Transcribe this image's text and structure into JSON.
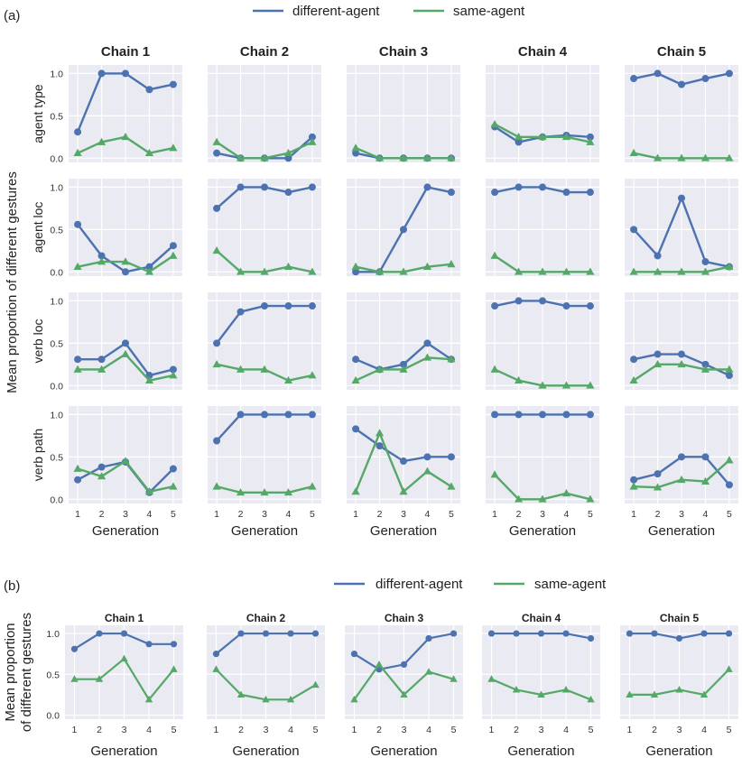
{
  "colors": {
    "different_agent": "#4c72b0",
    "same_agent": "#55a868",
    "panel_bg": "#eaeaf2",
    "grid": "#ffffff"
  },
  "chart_data": [
    {
      "panel": "(a)",
      "type": "line",
      "legend": {
        "position": "top-center",
        "entries": [
          "different-agent",
          "same-agent"
        ]
      },
      "ylabel": "Mean proportion of different gestures",
      "xlabel": "Generation",
      "x": [
        1,
        2,
        3,
        4,
        5
      ],
      "xticks": [
        "1",
        "2",
        "3",
        "4",
        "5"
      ],
      "ylim": [
        -0.05,
        1.1
      ],
      "yticks": [
        "0.0",
        "0.5",
        "1.0"
      ],
      "grid": true,
      "columns": [
        "Chain 1",
        "Chain 2",
        "Chain 3",
        "Chain 4",
        "Chain 5"
      ],
      "rows": [
        {
          "label": "agent type",
          "cells": [
            {
              "different": [
                0.31,
                1.0,
                1.0,
                0.81,
                0.87
              ],
              "same": [
                0.06,
                0.19,
                0.25,
                0.06,
                0.12
              ]
            },
            {
              "different": [
                0.06,
                0.0,
                0.0,
                0.0,
                0.25
              ],
              "same": [
                0.19,
                0.0,
                0.0,
                0.06,
                0.19
              ]
            },
            {
              "different": [
                0.06,
                0.0,
                0.0,
                0.0,
                0.0
              ],
              "same": [
                0.12,
                0.0,
                0.0,
                0.0,
                0.0
              ]
            },
            {
              "different": [
                0.37,
                0.19,
                0.25,
                0.27,
                0.25
              ],
              "same": [
                0.4,
                0.25,
                0.25,
                0.25,
                0.19
              ]
            },
            {
              "different": [
                0.94,
                1.0,
                0.87,
                0.94,
                1.0
              ],
              "same": [
                0.06,
                0.0,
                0.0,
                0.0,
                0.0
              ]
            }
          ]
        },
        {
          "label": "agent loc",
          "cells": [
            {
              "different": [
                0.56,
                0.19,
                0.0,
                0.06,
                0.31
              ],
              "same": [
                0.06,
                0.12,
                0.12,
                0.0,
                0.19
              ]
            },
            {
              "different": [
                0.75,
                1.0,
                1.0,
                0.94,
                1.0
              ],
              "same": [
                0.25,
                0.0,
                0.0,
                0.06,
                0.0
              ]
            },
            {
              "different": [
                0.0,
                0.0,
                0.5,
                1.0,
                0.94
              ],
              "same": [
                0.06,
                0.0,
                0.0,
                0.06,
                0.09
              ]
            },
            {
              "different": [
                0.94,
                1.0,
                1.0,
                0.94,
                0.94
              ],
              "same": [
                0.19,
                0.0,
                0.0,
                0.0,
                0.0
              ]
            },
            {
              "different": [
                0.5,
                0.19,
                0.87,
                0.12,
                0.06
              ],
              "same": [
                0.0,
                0.0,
                0.0,
                0.0,
                0.06
              ]
            }
          ]
        },
        {
          "label": "verb loc",
          "cells": [
            {
              "different": [
                0.31,
                0.31,
                0.5,
                0.12,
                0.19
              ],
              "same": [
                0.19,
                0.19,
                0.37,
                0.06,
                0.12
              ]
            },
            {
              "different": [
                0.5,
                0.87,
                0.94,
                0.94,
                0.94
              ],
              "same": [
                0.25,
                0.19,
                0.19,
                0.06,
                0.12
              ]
            },
            {
              "different": [
                0.31,
                0.19,
                0.25,
                0.5,
                0.31
              ],
              "same": [
                0.06,
                0.19,
                0.19,
                0.33,
                0.31
              ]
            },
            {
              "different": [
                0.94,
                1.0,
                1.0,
                0.94,
                0.94
              ],
              "same": [
                0.19,
                0.06,
                0.0,
                0.0,
                0.0
              ]
            },
            {
              "different": [
                0.31,
                0.37,
                0.37,
                0.25,
                0.12
              ],
              "same": [
                0.06,
                0.25,
                0.25,
                0.19,
                0.19
              ]
            }
          ]
        },
        {
          "label": "verb path",
          "cells": [
            {
              "different": [
                0.23,
                0.38,
                0.44,
                0.08,
                0.36
              ],
              "same": [
                0.36,
                0.27,
                0.45,
                0.09,
                0.15
              ]
            },
            {
              "different": [
                0.69,
                1.0,
                1.0,
                1.0,
                1.0
              ],
              "same": [
                0.15,
                0.08,
                0.08,
                0.08,
                0.15
              ]
            },
            {
              "different": [
                0.83,
                0.63,
                0.45,
                0.5,
                0.5
              ],
              "same": [
                0.09,
                0.78,
                0.09,
                0.33,
                0.15
              ]
            },
            {
              "different": [
                1.0,
                1.0,
                1.0,
                1.0,
                1.0
              ],
              "same": [
                0.29,
                0.0,
                0.0,
                0.07,
                0.0
              ]
            },
            {
              "different": [
                0.23,
                0.3,
                0.5,
                0.5,
                0.17
              ],
              "same": [
                0.15,
                0.14,
                0.23,
                0.21,
                0.46
              ]
            }
          ]
        }
      ]
    },
    {
      "panel": "(b)",
      "type": "line",
      "legend": {
        "position": "top-center",
        "entries": [
          "different-agent",
          "same-agent"
        ]
      },
      "ylabel_lines": [
        "Mean proportion",
        "of different gestures"
      ],
      "xlabel": "Generation",
      "x": [
        1,
        2,
        3,
        4,
        5
      ],
      "xticks": [
        "1",
        "2",
        "3",
        "4",
        "5"
      ],
      "ylim": [
        -0.05,
        1.1
      ],
      "yticks": [
        "0.0",
        "0.5",
        "1.0"
      ],
      "grid": true,
      "columns": [
        "Chain 1",
        "Chain 2",
        "Chain 3",
        "Chain 4",
        "Chain 5"
      ],
      "cells": [
        {
          "different": [
            0.81,
            1.0,
            1.0,
            0.87,
            0.87
          ],
          "same": [
            0.44,
            0.44,
            0.69,
            0.19,
            0.56
          ]
        },
        {
          "different": [
            0.75,
            1.0,
            1.0,
            1.0,
            1.0
          ],
          "same": [
            0.56,
            0.25,
            0.19,
            0.19,
            0.37
          ]
        },
        {
          "different": [
            0.75,
            0.56,
            0.62,
            0.94,
            1.0
          ],
          "same": [
            0.19,
            0.62,
            0.25,
            0.53,
            0.44
          ]
        },
        {
          "different": [
            1.0,
            1.0,
            1.0,
            1.0,
            0.94
          ],
          "same": [
            0.44,
            0.31,
            0.25,
            0.31,
            0.19
          ]
        },
        {
          "different": [
            1.0,
            1.0,
            0.94,
            1.0,
            1.0
          ],
          "same": [
            0.25,
            0.25,
            0.31,
            0.25,
            0.56
          ]
        }
      ]
    }
  ]
}
